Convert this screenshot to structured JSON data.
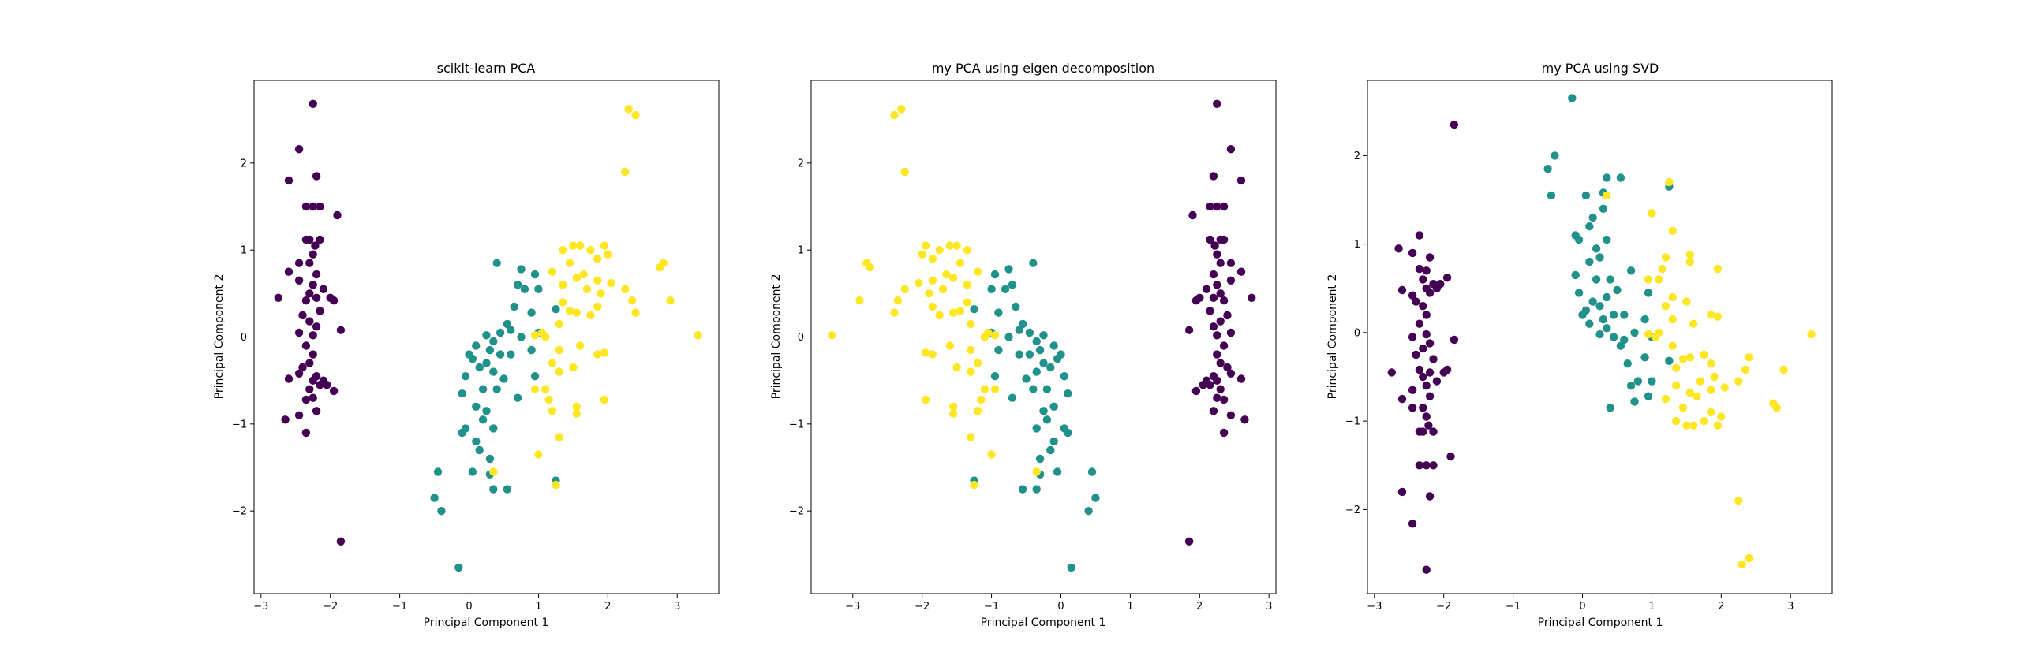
{
  "colors": {
    "class_0": "#440154",
    "class_1": "#21918c",
    "class_2": "#fde725"
  },
  "chart_data": [
    {
      "type": "scatter",
      "title": "scikit-learn PCA",
      "xlabel": "Principal Component 1",
      "ylabel": "Principal Component 2",
      "xlim": [
        -3.1,
        3.6
      ],
      "ylim": [
        -2.95,
        2.95
      ],
      "xticks": [
        {
          "v": -3,
          "t": "−3"
        },
        {
          "v": -2,
          "t": "−2"
        },
        {
          "v": -1,
          "t": "−1"
        },
        {
          "v": 0,
          "t": "0"
        },
        {
          "v": 1,
          "t": "1"
        },
        {
          "v": 2,
          "t": "2"
        },
        {
          "v": 3,
          "t": "3"
        }
      ],
      "yticks": [
        {
          "v": -2,
          "t": "−2"
        },
        {
          "v": -1,
          "t": "−1"
        },
        {
          "v": 0,
          "t": "0"
        },
        {
          "v": 1,
          "t": "1"
        },
        {
          "v": 2,
          "t": "2"
        }
      ],
      "grid": false,
      "series": [
        {
          "class": 0,
          "points": [
            [
              -2.25,
              2.68
            ],
            [
              -2.45,
              2.16
            ],
            [
              -2.6,
              1.8
            ],
            [
              -2.2,
              1.85
            ],
            [
              -2.35,
              1.5
            ],
            [
              -2.25,
              1.5
            ],
            [
              -2.15,
              1.5
            ],
            [
              -1.9,
              1.4
            ],
            [
              -2.35,
              1.12
            ],
            [
              -2.3,
              1.12
            ],
            [
              -2.15,
              1.12
            ],
            [
              -2.22,
              1.05
            ],
            [
              -2.45,
              0.85
            ],
            [
              -2.3,
              0.85
            ],
            [
              -2.25,
              0.95
            ],
            [
              -2.6,
              0.75
            ],
            [
              -2.2,
              0.72
            ],
            [
              -2.45,
              0.65
            ],
            [
              -2.25,
              0.6
            ],
            [
              -2.1,
              0.55
            ],
            [
              -2.3,
              0.5
            ],
            [
              -2.2,
              0.45
            ],
            [
              -2.35,
              0.42
            ],
            [
              -2.0,
              0.45
            ],
            [
              -1.95,
              0.42
            ],
            [
              -2.75,
              0.45
            ],
            [
              -2.15,
              0.3
            ],
            [
              -2.4,
              0.25
            ],
            [
              -2.3,
              0.18
            ],
            [
              -2.2,
              0.12
            ],
            [
              -2.45,
              0.05
            ],
            [
              -2.25,
              0.02
            ],
            [
              -1.85,
              0.08
            ],
            [
              -2.35,
              -0.1
            ],
            [
              -2.25,
              -0.2
            ],
            [
              -2.4,
              -0.35
            ],
            [
              -2.3,
              -0.3
            ],
            [
              -2.45,
              -0.42
            ],
            [
              -2.2,
              -0.45
            ],
            [
              -2.6,
              -0.48
            ],
            [
              -2.25,
              -0.5
            ],
            [
              -2.1,
              -0.5
            ],
            [
              -2.15,
              -0.55
            ],
            [
              -2.05,
              -0.55
            ],
            [
              -2.3,
              -0.6
            ],
            [
              -1.95,
              -0.62
            ],
            [
              -2.35,
              -0.72
            ],
            [
              -2.25,
              -0.7
            ],
            [
              -2.65,
              -0.95
            ],
            [
              -2.45,
              -0.9
            ],
            [
              -2.2,
              -0.85
            ],
            [
              -2.35,
              -1.1
            ],
            [
              -1.85,
              -2.35
            ]
          ]
        },
        {
          "class": 1,
          "points": [
            [
              0.4,
              0.85
            ],
            [
              0.75,
              0.78
            ],
            [
              0.95,
              0.72
            ],
            [
              0.7,
              0.6
            ],
            [
              1.0,
              0.55
            ],
            [
              0.8,
              0.55
            ],
            [
              0.65,
              0.35
            ],
            [
              0.9,
              0.28
            ],
            [
              0.55,
              0.15
            ],
            [
              0.45,
              0.05
            ],
            [
              0.6,
              0.08
            ],
            [
              0.25,
              0.02
            ],
            [
              0.75,
              0.0
            ],
            [
              0.35,
              -0.05
            ],
            [
              0.1,
              -0.1
            ],
            [
              0.0,
              -0.2
            ],
            [
              0.3,
              -0.15
            ],
            [
              0.45,
              -0.2
            ],
            [
              0.6,
              -0.2
            ],
            [
              0.25,
              -0.3
            ],
            [
              0.05,
              -0.25
            ],
            [
              0.15,
              -0.35
            ],
            [
              0.35,
              -0.4
            ],
            [
              -0.05,
              -0.45
            ],
            [
              0.5,
              -0.48
            ],
            [
              0.2,
              -0.6
            ],
            [
              0.4,
              -0.6
            ],
            [
              -0.1,
              -0.65
            ],
            [
              0.7,
              -0.7
            ],
            [
              0.1,
              -0.8
            ],
            [
              0.25,
              -0.85
            ],
            [
              0.2,
              -0.95
            ],
            [
              -0.05,
              -1.05
            ],
            [
              -0.1,
              -1.1
            ],
            [
              0.35,
              -1.05
            ],
            [
              0.1,
              -1.2
            ],
            [
              0.15,
              -1.3
            ],
            [
              0.3,
              -1.4
            ],
            [
              -0.45,
              -1.55
            ],
            [
              0.05,
              -1.55
            ],
            [
              0.3,
              -1.58
            ],
            [
              0.55,
              -1.75
            ],
            [
              0.35,
              -1.75
            ],
            [
              -0.5,
              -1.85
            ],
            [
              -0.4,
              -2.0
            ],
            [
              -0.15,
              -2.65
            ],
            [
              1.25,
              -1.65
            ],
            [
              0.95,
              -0.45
            ],
            [
              0.9,
              -0.15
            ],
            [
              1.0,
              0.05
            ],
            [
              1.25,
              0.32
            ]
          ]
        },
        {
          "class": 2,
          "points": [
            [
              2.3,
              2.62
            ],
            [
              2.4,
              2.55
            ],
            [
              2.25,
              1.9
            ],
            [
              1.5,
              1.05
            ],
            [
              1.6,
              1.05
            ],
            [
              1.35,
              1.0
            ],
            [
              1.75,
              1.0
            ],
            [
              1.95,
              1.05
            ],
            [
              2.0,
              0.95
            ],
            [
              1.85,
              0.9
            ],
            [
              1.45,
              0.85
            ],
            [
              2.8,
              0.85
            ],
            [
              2.75,
              0.8
            ],
            [
              1.65,
              0.72
            ],
            [
              1.2,
              0.75
            ],
            [
              1.55,
              0.68
            ],
            [
              1.85,
              0.65
            ],
            [
              1.35,
              0.6
            ],
            [
              2.05,
              0.62
            ],
            [
              1.7,
              0.55
            ],
            [
              2.25,
              0.55
            ],
            [
              1.9,
              0.5
            ],
            [
              2.35,
              0.42
            ],
            [
              2.9,
              0.42
            ],
            [
              1.35,
              0.4
            ],
            [
              1.85,
              0.35
            ],
            [
              1.45,
              0.3
            ],
            [
              2.4,
              0.28
            ],
            [
              1.55,
              0.28
            ],
            [
              1.75,
              0.25
            ],
            [
              1.3,
              0.15
            ],
            [
              1.05,
              0.05
            ],
            [
              1.1,
              0.0
            ],
            [
              0.95,
              0.02
            ],
            [
              1.6,
              -0.1
            ],
            [
              1.3,
              -0.15
            ],
            [
              1.85,
              -0.2
            ],
            [
              1.95,
              -0.18
            ],
            [
              1.2,
              -0.3
            ],
            [
              1.5,
              -0.35
            ],
            [
              1.3,
              -0.4
            ],
            [
              0.95,
              -0.6
            ],
            [
              1.1,
              -0.6
            ],
            [
              1.15,
              -0.72
            ],
            [
              1.55,
              -0.8
            ],
            [
              1.2,
              -0.85
            ],
            [
              1.95,
              -0.72
            ],
            [
              1.55,
              -0.88
            ],
            [
              1.3,
              -1.15
            ],
            [
              1.0,
              -1.35
            ],
            [
              1.25,
              -1.7
            ],
            [
              0.35,
              -1.55
            ],
            [
              3.3,
              0.02
            ]
          ]
        }
      ]
    },
    {
      "type": "scatter",
      "title": "my PCA using eigen decomposition",
      "xlabel": "Principal Component 1",
      "ylabel": "Principal Component 2",
      "xlim": [
        -3.6,
        3.1
      ],
      "ylim": [
        -2.95,
        2.95
      ],
      "xticks": [
        {
          "v": -3,
          "t": "−3"
        },
        {
          "v": -2,
          "t": "−2"
        },
        {
          "v": -1,
          "t": "−1"
        },
        {
          "v": 0,
          "t": "0"
        },
        {
          "v": 1,
          "t": "1"
        },
        {
          "v": 2,
          "t": "2"
        },
        {
          "v": 3,
          "t": "3"
        }
      ],
      "yticks": [
        {
          "v": -2,
          "t": "−2"
        },
        {
          "v": -1,
          "t": "−1"
        },
        {
          "v": 0,
          "t": "0"
        },
        {
          "v": 1,
          "t": "1"
        },
        {
          "v": 2,
          "t": "2"
        }
      ],
      "grid": false,
      "mirror_x_of": 0,
      "series": []
    },
    {
      "type": "scatter",
      "title": "my PCA using SVD",
      "xlabel": "Principal Component 1",
      "ylabel": "Principal Component 2",
      "xlim": [
        -3.1,
        3.6
      ],
      "ylim": [
        -2.95,
        2.85
      ],
      "xticks": [
        {
          "v": -3,
          "t": "−3"
        },
        {
          "v": -2,
          "t": "−2"
        },
        {
          "v": -1,
          "t": "−1"
        },
        {
          "v": 0,
          "t": "0"
        },
        {
          "v": 1,
          "t": "1"
        },
        {
          "v": 2,
          "t": "2"
        },
        {
          "v": 3,
          "t": "3"
        }
      ],
      "yticks": [
        {
          "v": -2,
          "t": "−2"
        },
        {
          "v": -1,
          "t": "−1"
        },
        {
          "v": 0,
          "t": "0"
        },
        {
          "v": 1,
          "t": "1"
        },
        {
          "v": 2,
          "t": "2"
        }
      ],
      "grid": false,
      "mirror_y_of": 0,
      "series": []
    }
  ]
}
